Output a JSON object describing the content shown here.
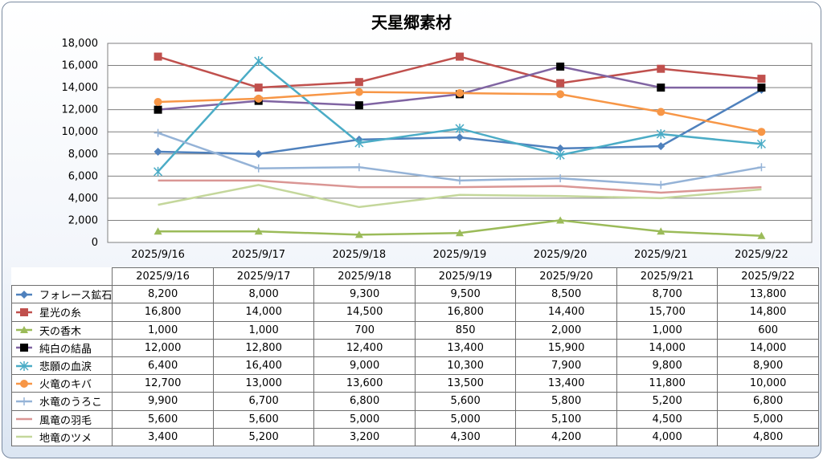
{
  "chart_data": {
    "type": "line",
    "title": "天星郷素材",
    "xlabel": "",
    "ylabel": "",
    "ylim": [
      0,
      18000
    ],
    "yticks": [
      0,
      2000,
      4000,
      6000,
      8000,
      10000,
      12000,
      14000,
      16000,
      18000
    ],
    "ytick_labels": [
      "0",
      "2,000",
      "4,000",
      "6,000",
      "8,000",
      "10,000",
      "12,000",
      "14,000",
      "16,000",
      "18,000"
    ],
    "grid": true,
    "legend": "data-table-below",
    "categories": [
      "2025/9/16",
      "2025/9/17",
      "2025/9/18",
      "2025/9/19",
      "2025/9/20",
      "2025/9/21",
      "2025/9/22"
    ],
    "series": [
      {
        "name": "フォレース鉱石",
        "color": "#4f81bd",
        "marker": "diamond",
        "values": [
          8200,
          8000,
          9300,
          9500,
          8500,
          8700,
          13800
        ],
        "labels": [
          "8,200",
          "8,000",
          "9,300",
          "9,500",
          "8,500",
          "8,700",
          "13,800"
        ]
      },
      {
        "name": "星光の糸",
        "color": "#c0504d",
        "marker": "square",
        "values": [
          16800,
          14000,
          14500,
          16800,
          14400,
          15700,
          14800
        ],
        "labels": [
          "16,800",
          "14,000",
          "14,500",
          "16,800",
          "14,400",
          "15,700",
          "14,800"
        ]
      },
      {
        "name": "天の香木",
        "color": "#9bbb59",
        "marker": "triangle",
        "values": [
          1000,
          1000,
          700,
          850,
          2000,
          1000,
          600
        ],
        "labels": [
          "1,000",
          "1,000",
          "700",
          "850",
          "2,000",
          "1,000",
          "600"
        ]
      },
      {
        "name": "純白の結晶",
        "color": "#8064a2",
        "marker": "blacksquare",
        "values": [
          12000,
          12800,
          12400,
          13400,
          15900,
          14000,
          14000
        ],
        "labels": [
          "12,000",
          "12,800",
          "12,400",
          "13,400",
          "15,900",
          "14,000",
          "14,000"
        ]
      },
      {
        "name": "悲願の血涙",
        "color": "#4bacc6",
        "marker": "star",
        "values": [
          6400,
          16400,
          9000,
          10300,
          7900,
          9800,
          8900
        ],
        "labels": [
          "6,400",
          "16,400",
          "9,000",
          "10,300",
          "7,900",
          "9,800",
          "8,900"
        ]
      },
      {
        "name": "火竜のキバ",
        "color": "#f79646",
        "marker": "circle",
        "values": [
          12700,
          13000,
          13600,
          13500,
          13400,
          11800,
          10000
        ],
        "labels": [
          "12,700",
          "13,000",
          "13,600",
          "13,500",
          "13,400",
          "11,800",
          "10,000"
        ]
      },
      {
        "name": "水竜のうろこ",
        "color": "#95b3d7",
        "marker": "plus",
        "values": [
          9900,
          6700,
          6800,
          5600,
          5800,
          5200,
          6800
        ],
        "labels": [
          "9,900",
          "6,700",
          "6,800",
          "5,600",
          "5,800",
          "5,200",
          "6,800"
        ]
      },
      {
        "name": "風竜の羽毛",
        "color": "#da9694",
        "marker": "none",
        "values": [
          5600,
          5600,
          5000,
          5000,
          5100,
          4500,
          5000
        ],
        "labels": [
          "5,600",
          "5,600",
          "5,000",
          "5,000",
          "5,100",
          "4,500",
          "5,000"
        ]
      },
      {
        "name": "地竜のツメ",
        "color": "#c4d79b",
        "marker": "none",
        "values": [
          3400,
          5200,
          3200,
          4300,
          4200,
          4000,
          4800
        ],
        "labels": [
          "3,400",
          "5,200",
          "3,200",
          "4,300",
          "4,200",
          "4,000",
          "4,800"
        ]
      }
    ]
  }
}
